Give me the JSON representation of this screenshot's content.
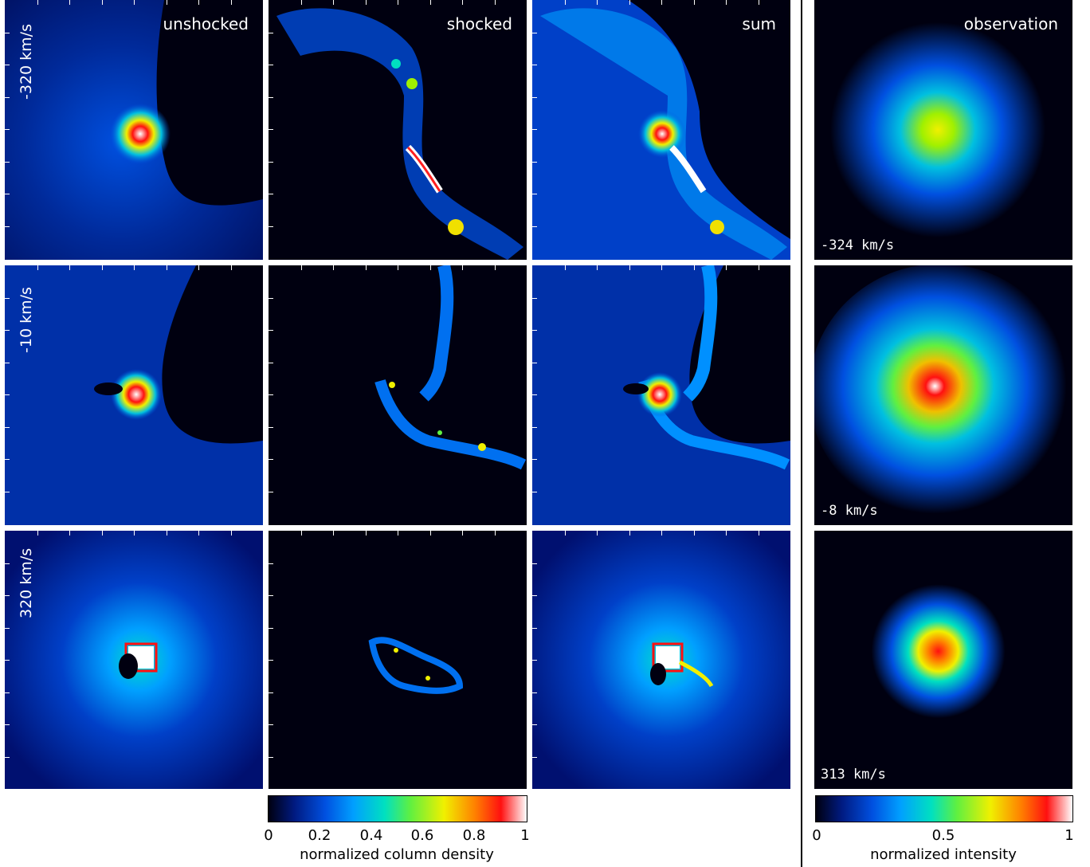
{
  "columns": {
    "unshocked": "unshocked",
    "shocked": "shocked",
    "sum": "sum",
    "observation": "observation"
  },
  "rows": {
    "r1": "-320 km/s",
    "r2": "-10 km/s",
    "r3": "320 km/s"
  },
  "observation_velocities": {
    "r1": "-324 km/s",
    "r2": "-8 km/s",
    "r3": "313 km/s"
  },
  "colorbar_left": {
    "title": "normalized column density",
    "ticks": [
      "0",
      "0.2",
      "0.4",
      "0.6",
      "0.8",
      "1"
    ]
  },
  "colorbar_right": {
    "title": "normalized intensity",
    "ticks": [
      "0",
      "0.5",
      "1"
    ]
  },
  "colormap": [
    "#000010",
    "#001a80",
    "#0050e0",
    "#00a0ff",
    "#00e0c0",
    "#60f040",
    "#f0f000",
    "#ff8000",
    "#ff1010",
    "#ffffff"
  ]
}
